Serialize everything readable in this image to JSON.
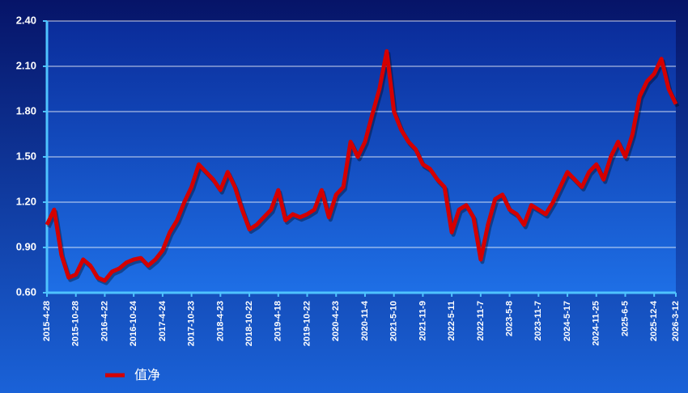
{
  "chart_data": {
    "type": "line",
    "categories": [
      "2015-4-28",
      null,
      null,
      null,
      "2015-10-28",
      null,
      null,
      null,
      "2016-4-22",
      null,
      null,
      null,
      "2016-10-24",
      null,
      null,
      null,
      "2017-4-24",
      null,
      null,
      null,
      "2017-10-23",
      null,
      null,
      null,
      "2018-4-23",
      null,
      null,
      null,
      "2018-10-22",
      null,
      null,
      null,
      "2019-4-18",
      null,
      null,
      null,
      "2019-10-22",
      null,
      null,
      null,
      "2020-4-23",
      null,
      null,
      null,
      "2020-11-4",
      null,
      null,
      null,
      "2021-5-10",
      null,
      null,
      null,
      "2021-11-9",
      null,
      null,
      null,
      "2022-5-11",
      null,
      null,
      null,
      "2022-11-7",
      null,
      null,
      null,
      "2023-5-8",
      null,
      null,
      null,
      "2023-11-7",
      null,
      null,
      null,
      "2024-5-17",
      null,
      null,
      null,
      "2024-11-25",
      null,
      null,
      null,
      "2025-6-5",
      null,
      null,
      null,
      "2025-12-4",
      null,
      null,
      "2026-3-12"
    ],
    "series": [
      {
        "name": "值净",
        "color": "#d40000",
        "values": [
          1.05,
          1.15,
          0.85,
          0.7,
          0.72,
          0.82,
          0.78,
          0.7,
          0.68,
          0.74,
          0.76,
          0.8,
          0.82,
          0.83,
          0.78,
          0.82,
          0.88,
          1.0,
          1.08,
          1.2,
          1.3,
          1.45,
          1.4,
          1.35,
          1.28,
          1.4,
          1.3,
          1.15,
          1.02,
          1.05,
          1.1,
          1.15,
          1.28,
          1.08,
          1.12,
          1.1,
          1.12,
          1.15,
          1.28,
          1.1,
          1.25,
          1.3,
          1.6,
          1.5,
          1.6,
          1.78,
          1.95,
          2.2,
          1.8,
          1.68,
          1.6,
          1.55,
          1.45,
          1.42,
          1.35,
          1.3,
          1.0,
          1.15,
          1.18,
          1.1,
          0.82,
          1.05,
          1.22,
          1.25,
          1.15,
          1.12,
          1.05,
          1.18,
          1.15,
          1.12,
          1.2,
          1.3,
          1.4,
          1.35,
          1.3,
          1.4,
          1.45,
          1.35,
          1.5,
          1.6,
          1.5,
          1.65,
          1.9,
          2.0,
          2.05,
          2.15,
          1.95,
          1.85
        ]
      }
    ],
    "ylim": [
      0.6,
      2.4
    ],
    "yticks": [
      {
        "value": 0.6,
        "label": "0.60"
      },
      {
        "value": 0.9,
        "label": "0.90"
      },
      {
        "value": 1.2,
        "label": "1.20"
      },
      {
        "value": 1.5,
        "label": "1.50"
      },
      {
        "value": 1.8,
        "label": "1.80"
      },
      {
        "value": 2.1,
        "label": "2.10"
      },
      {
        "value": 2.4,
        "label": "2.40"
      }
    ],
    "grid": true
  }
}
